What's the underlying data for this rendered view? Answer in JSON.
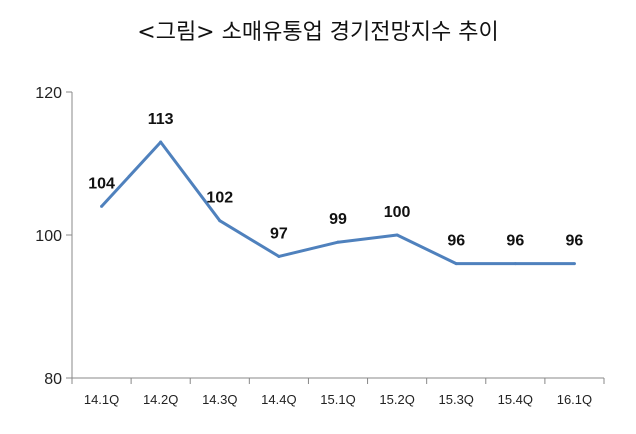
{
  "chart_data": {
    "type": "line",
    "title": "<그림> 소매유통업 경기전망지수 추이",
    "categories": [
      "14.1Q",
      "14.2Q",
      "14.3Q",
      "14.4Q",
      "15.1Q",
      "15.2Q",
      "15.3Q",
      "15.4Q",
      "16.1Q"
    ],
    "series": [
      {
        "values": [
          104,
          113,
          102,
          97,
          99,
          100,
          96,
          96,
          96
        ],
        "color": "#4f81bd"
      }
    ],
    "ylim": [
      80,
      120
    ],
    "yticks": [
      80,
      100,
      120
    ],
    "ytick_labels": [
      "80",
      "100",
      "120"
    ],
    "data_labels": [
      "104",
      "113",
      "102",
      "97",
      "99",
      "100",
      "96",
      "96",
      "96"
    ],
    "xlabel": "",
    "ylabel": "",
    "grid": false,
    "legend": "none"
  }
}
